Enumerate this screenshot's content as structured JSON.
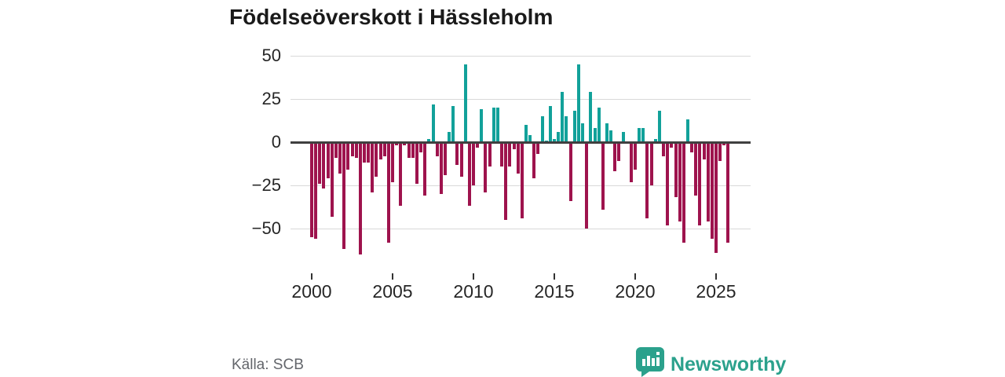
{
  "title": "Födelseöverskott i Hässleholm",
  "source": "Källa: SCB",
  "logo": {
    "text": "Newsworthy"
  },
  "chart_data": {
    "type": "bar",
    "title": "Födelseöverskott i Hässleholm",
    "xlabel": "",
    "ylabel": "",
    "x_unit": "quarter",
    "start_year": 2000,
    "periods_per_year": 4,
    "x_range_note": "quarterly values from 2000 Q1 to 2025 Q4",
    "values": [
      -55,
      -56,
      -24,
      -27,
      -21,
      -43,
      -9,
      -18,
      -62,
      -16,
      -8,
      -9,
      -65,
      -12,
      -12,
      -29,
      -20,
      -10,
      -8,
      -58,
      -23,
      -2,
      -37,
      -2,
      -9,
      -9,
      -24,
      -6,
      -31,
      2,
      22,
      -8,
      -30,
      -19,
      6,
      21,
      -13,
      -20,
      45,
      -37,
      -25,
      -3,
      19,
      -29,
      -14,
      20,
      20,
      -14,
      -45,
      -14,
      -4,
      -18,
      -44,
      10,
      4,
      -21,
      -7,
      15,
      1,
      21,
      2,
      6,
      29,
      15,
      -34,
      18,
      45,
      11,
      -50,
      29,
      8,
      20,
      -39,
      11,
      7,
      -17,
      -11,
      6,
      -1,
      -23,
      -16,
      8,
      8,
      -44,
      -25,
      2,
      18,
      -8,
      -48,
      -3,
      -32,
      -46,
      -58,
      13,
      -6,
      -31,
      -48,
      -10,
      -46,
      -56,
      -64,
      -11,
      -2,
      -58
    ],
    "y_ticks": [
      50,
      25,
      0,
      -25,
      -50
    ],
    "x_ticks": [
      2000,
      2005,
      2010,
      2015,
      2020,
      2025
    ],
    "ylim": [
      -70,
      55
    ],
    "grid": "horizontal only",
    "legend": "none",
    "colors": {
      "positive": "#12a19a",
      "negative": "#9e134d"
    }
  }
}
